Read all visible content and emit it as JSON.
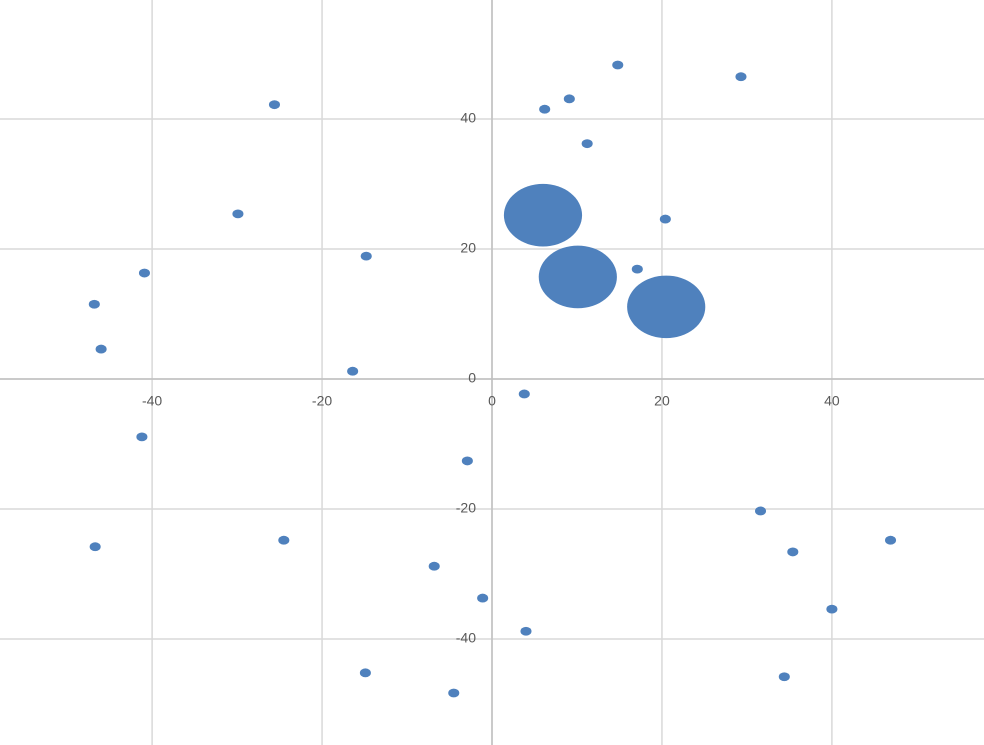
{
  "chart_data": {
    "type": "bubble",
    "x": [
      14.8,
      29.3,
      9.1,
      6.2,
      -25.6,
      11.2,
      -29.9,
      20.4,
      -14.8,
      17.1,
      -40.9,
      -46.8,
      -46.0,
      -16.4,
      3.8,
      -41.2,
      -2.9,
      31.6,
      -46.7,
      -24.5,
      46.9,
      35.4,
      -6.8,
      -1.1,
      40.0,
      4.0,
      -14.9,
      34.4,
      -4.5,
      6.0,
      10.1,
      20.5
    ],
    "values": [
      48.3,
      46.5,
      43.1,
      41.5,
      42.2,
      36.2,
      25.4,
      24.6,
      18.9,
      16.9,
      16.3,
      11.5,
      4.6,
      1.2,
      -2.3,
      -8.9,
      -12.6,
      -20.3,
      -25.8,
      -24.8,
      -24.8,
      -26.6,
      -28.8,
      -33.7,
      -35.4,
      -38.8,
      -45.2,
      -45.8,
      -48.3,
      25.2,
      15.7,
      11.1
    ],
    "sizes": [
      0.65,
      0.65,
      0.65,
      0.65,
      0.65,
      0.65,
      0.65,
      0.65,
      0.65,
      0.65,
      0.65,
      0.65,
      0.65,
      0.65,
      0.65,
      0.65,
      0.65,
      0.65,
      0.65,
      0.65,
      0.65,
      0.65,
      0.65,
      0.65,
      0.65,
      0.65,
      0.65,
      0.65,
      0.65,
      4.6,
      4.6,
      4.6
    ],
    "color": "#4f81bd",
    "xlim": [
      -57.9,
      57.9
    ],
    "ylim": [
      -56.3,
      58.3
    ],
    "xticks": [
      -40,
      -20,
      0,
      20,
      40
    ],
    "yticks": [
      -40,
      -20,
      0,
      20,
      40
    ],
    "grid": true
  }
}
